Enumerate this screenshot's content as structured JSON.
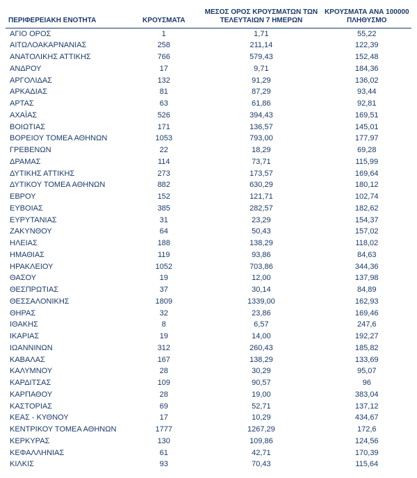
{
  "table": {
    "columns": [
      "ΠΕΡΙΦΕΡΕΙΑΚΗ ΕΝΟΤΗΤΑ",
      "ΚΡΟΥΣΜΑΤΑ",
      "ΜΕΣΟΣ ΟΡΟΣ ΚΡΟΥΣΜΑΤΩΝ ΤΩΝ ΤΕΛΕΥΤΑΙΩΝ 7 ΗΜΕΡΩΝ",
      "ΚΡΟΥΣΜΑΤΑ ΑΝΑ 100000 ΠΛΗΘΥΣΜΟ"
    ],
    "rows": [
      [
        "ΑΓΙΟ ΟΡΟΣ",
        "1",
        "1,71",
        "55,22"
      ],
      [
        "ΑΙΤΩΛΟΑΚΑΡΝΑΝΙΑΣ",
        "258",
        "211,14",
        "122,39"
      ],
      [
        "ΑΝΑΤΟΛΙΚΗΣ ΑΤΤΙΚΗΣ",
        "766",
        "579,43",
        "152,48"
      ],
      [
        "ΑΝΔΡΟΥ",
        "17",
        "9,71",
        "184,36"
      ],
      [
        "ΑΡΓΟΛΙΔΑΣ",
        "132",
        "91,29",
        "136,02"
      ],
      [
        "ΑΡΚΑΔΙΑΣ",
        "81",
        "87,29",
        "93,44"
      ],
      [
        "ΑΡΤΑΣ",
        "63",
        "61,86",
        "92,81"
      ],
      [
        "ΑΧΑΪΑΣ",
        "526",
        "394,43",
        "169,51"
      ],
      [
        "ΒΟΙΩΤΙΑΣ",
        "171",
        "136,57",
        "145,01"
      ],
      [
        "ΒΟΡΕΙΟΥ ΤΟΜΕΑ ΑΘΗΝΩΝ",
        "1053",
        "793,00",
        "177,97"
      ],
      [
        "ΓΡΕΒΕΝΩΝ",
        "22",
        "18,29",
        "69,28"
      ],
      [
        "ΔΡΑΜΑΣ",
        "114",
        "73,71",
        "115,99"
      ],
      [
        "ΔΥΤΙΚΗΣ ΑΤΤΙΚΗΣ",
        "273",
        "173,57",
        "169,64"
      ],
      [
        "ΔΥΤΙΚΟΥ ΤΟΜΕΑ ΑΘΗΝΩΝ",
        "882",
        "630,29",
        "180,12"
      ],
      [
        "ΕΒΡΟΥ",
        "152",
        "121,71",
        "102,74"
      ],
      [
        "ΕΥΒΟΙΑΣ",
        "385",
        "282,57",
        "182,62"
      ],
      [
        "ΕΥΡΥΤΑΝΙΑΣ",
        "31",
        "23,29",
        "154,37"
      ],
      [
        "ΖΑΚΥΝΘΟΥ",
        "64",
        "50,43",
        "157,02"
      ],
      [
        "ΗΛΕΙΑΣ",
        "188",
        "138,29",
        "118,02"
      ],
      [
        "ΗΜΑΘΙΑΣ",
        "119",
        "93,86",
        "84,63"
      ],
      [
        "ΗΡΑΚΛΕΙΟΥ",
        "1052",
        "703,86",
        "344,36"
      ],
      [
        "ΘΑΣΟΥ",
        "19",
        "12,00",
        "137,98"
      ],
      [
        "ΘΕΣΠΡΩΤΙΑΣ",
        "37",
        "30,14",
        "84,89"
      ],
      [
        "ΘΕΣΣΑΛΟΝΙΚΗΣ",
        "1809",
        "1339,00",
        "162,93"
      ],
      [
        "ΘΗΡΑΣ",
        "32",
        "23,86",
        "169,46"
      ],
      [
        "ΙΘΑΚΗΣ",
        "8",
        "6,57",
        "247,6"
      ],
      [
        "ΙΚΑΡΙΑΣ",
        "19",
        "14,00",
        "192,27"
      ],
      [
        "ΙΩΑΝΝΙΝΩΝ",
        "312",
        "260,43",
        "185,82"
      ],
      [
        "ΚΑΒΑΛΑΣ",
        "167",
        "138,29",
        "133,69"
      ],
      [
        "ΚΑΛΥΜΝΟΥ",
        "28",
        "30,29",
        "95,07"
      ],
      [
        "ΚΑΡΔΙΤΣΑΣ",
        "109",
        "90,57",
        "96"
      ],
      [
        "ΚΑΡΠΑΘΟΥ",
        "28",
        "19,00",
        "383,04"
      ],
      [
        "ΚΑΣΤΟΡΙΑΣ",
        "69",
        "52,71",
        "137,12"
      ],
      [
        "ΚΕΑΣ - ΚΥΘΝΟΥ",
        "17",
        "10,29",
        "434,67"
      ],
      [
        "ΚΕΝΤΡΙΚΟΥ ΤΟΜΕΑ ΑΘΗΝΩΝ",
        "1777",
        "1267,29",
        "172,6"
      ],
      [
        "ΚΕΡΚΥΡΑΣ",
        "130",
        "109,86",
        "124,56"
      ],
      [
        "ΚΕΦΑΛΛΗΝΙΑΣ",
        "61",
        "42,71",
        "170,39"
      ],
      [
        "ΚΙΛΚΙΣ",
        "93",
        "70,43",
        "115,64"
      ]
    ],
    "text_color": "#1a3a6b",
    "background_color": "#ffffff",
    "header_fontsize": 10,
    "body_fontsize": 11
  }
}
